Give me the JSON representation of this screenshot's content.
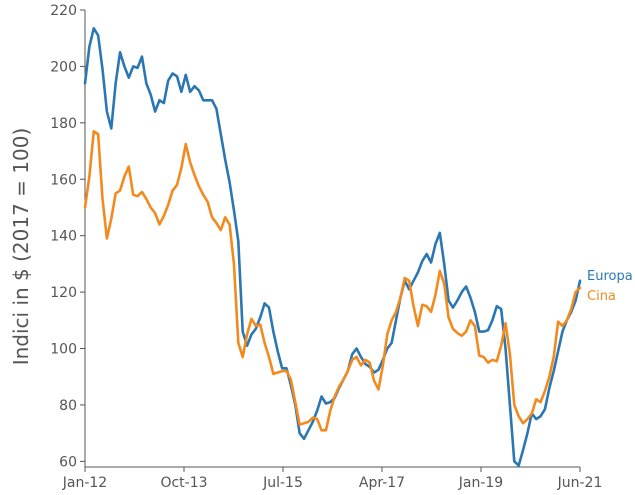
{
  "chart_data": {
    "type": "line",
    "title": "",
    "xlabel": "",
    "ylabel": "Indici in $ (2017 = 100)",
    "x_ticks": [
      "Jan-12",
      "Oct-13",
      "Jul-15",
      "Apr-17",
      "Jan-19",
      "Jun-21"
    ],
    "y_ticks": [
      60,
      80,
      100,
      120,
      140,
      160,
      180,
      200,
      220
    ],
    "ylim": [
      58,
      220
    ],
    "grid": false,
    "legend_placement": "right, at line ends",
    "series": [
      {
        "name": "Europa",
        "color": "#2a77b4",
        "points": [
          [
            "2012-01",
            194
          ],
          [
            "2012-02",
            207
          ],
          [
            "2012-03",
            213.5
          ],
          [
            "2012-04",
            211
          ],
          [
            "2012-05",
            199
          ],
          [
            "2012-06",
            184
          ],
          [
            "2012-07",
            178
          ],
          [
            "2012-08",
            194
          ],
          [
            "2012-09",
            205
          ],
          [
            "2012-10",
            200
          ],
          [
            "2012-11",
            196
          ],
          [
            "2012-12",
            200
          ],
          [
            "2013-01",
            199.5
          ],
          [
            "2013-02",
            203.5
          ],
          [
            "2013-03",
            194
          ],
          [
            "2013-04",
            190
          ],
          [
            "2013-05",
            184
          ],
          [
            "2013-06",
            188
          ],
          [
            "2013-07",
            187
          ],
          [
            "2013-08",
            195
          ],
          [
            "2013-09",
            197.5
          ],
          [
            "2013-10",
            196.5
          ],
          [
            "2013-11",
            191
          ],
          [
            "2013-12",
            197
          ],
          [
            "2014-01",
            191
          ],
          [
            "2014-02",
            193
          ],
          [
            "2014-03",
            191.5
          ],
          [
            "2014-04",
            188
          ],
          [
            "2014-05",
            188
          ],
          [
            "2014-06",
            188
          ],
          [
            "2014-07",
            185
          ],
          [
            "2014-08",
            176
          ],
          [
            "2014-09",
            167
          ],
          [
            "2014-10",
            159
          ],
          [
            "2014-11",
            149
          ],
          [
            "2014-12",
            138
          ],
          [
            "2015-01",
            106
          ],
          [
            "2015-02",
            101
          ],
          [
            "2015-03",
            105
          ],
          [
            "2015-04",
            107
          ],
          [
            "2015-05",
            111
          ],
          [
            "2015-06",
            116
          ],
          [
            "2015-07",
            114.5
          ],
          [
            "2015-08",
            106
          ],
          [
            "2015-09",
            99
          ],
          [
            "2015-10",
            93
          ],
          [
            "2015-11",
            93
          ],
          [
            "2015-12",
            87
          ],
          [
            "2016-01",
            80
          ],
          [
            "2016-02",
            70
          ],
          [
            "2016-03",
            68
          ],
          [
            "2016-04",
            71
          ],
          [
            "2016-05",
            74
          ],
          [
            "2016-06",
            78
          ],
          [
            "2016-07",
            83
          ],
          [
            "2016-08",
            80.5
          ],
          [
            "2016-09",
            81
          ],
          [
            "2016-10",
            82.5
          ],
          [
            "2016-11",
            86
          ],
          [
            "2016-12",
            89
          ],
          [
            "2017-01",
            92
          ],
          [
            "2017-02",
            98
          ],
          [
            "2017-03",
            100
          ],
          [
            "2017-04",
            97
          ],
          [
            "2017-05",
            94.5
          ],
          [
            "2017-06",
            93.5
          ],
          [
            "2017-07",
            91.5
          ],
          [
            "2017-08",
            92.5
          ],
          [
            "2017-09",
            96
          ],
          [
            "2017-10",
            100
          ],
          [
            "2017-11",
            102
          ],
          [
            "2017-12",
            110
          ],
          [
            "2018-01",
            118
          ],
          [
            "2018-02",
            124
          ],
          [
            "2018-03",
            121
          ],
          [
            "2018-04",
            124
          ],
          [
            "2018-05",
            127
          ],
          [
            "2018-06",
            131
          ],
          [
            "2018-07",
            133.5
          ],
          [
            "2018-08",
            130.5
          ],
          [
            "2018-09",
            137
          ],
          [
            "2018-10",
            141
          ],
          [
            "2018-11",
            130
          ],
          [
            "2018-12",
            117
          ],
          [
            "2019-01",
            114.5
          ],
          [
            "2019-02",
            117
          ],
          [
            "2019-03",
            120
          ],
          [
            "2019-04",
            122
          ],
          [
            "2019-05",
            118
          ],
          [
            "2019-06",
            113
          ],
          [
            "2019-07",
            106
          ],
          [
            "2019-08",
            106
          ],
          [
            "2019-09",
            106.5
          ],
          [
            "2019-10",
            110
          ],
          [
            "2019-11",
            115
          ],
          [
            "2019-12",
            114
          ],
          [
            "2020-01",
            100
          ],
          [
            "2020-02",
            80
          ],
          [
            "2020-03",
            60
          ],
          [
            "2020-04",
            58.5
          ],
          [
            "2020-05",
            64
          ],
          [
            "2020-06",
            70
          ],
          [
            "2020-07",
            77
          ],
          [
            "2020-08",
            75
          ],
          [
            "2020-09",
            76
          ],
          [
            "2020-10",
            78.5
          ],
          [
            "2020-11",
            86
          ],
          [
            "2020-12",
            92
          ],
          [
            "2021-01",
            99
          ],
          [
            "2021-02",
            106
          ],
          [
            "2021-03",
            110
          ],
          [
            "2021-04",
            113
          ],
          [
            "2021-05",
            117
          ],
          [
            "2021-06",
            124
          ]
        ]
      },
      {
        "name": "Cina",
        "color": "#f28a1e",
        "points": [
          [
            "2012-01",
            150
          ],
          [
            "2012-02",
            161
          ],
          [
            "2012-03",
            177
          ],
          [
            "2012-04",
            176
          ],
          [
            "2012-05",
            153
          ],
          [
            "2012-06",
            139
          ],
          [
            "2012-07",
            146
          ],
          [
            "2012-08",
            155
          ],
          [
            "2012-09",
            156
          ],
          [
            "2012-10",
            161
          ],
          [
            "2012-11",
            164.5
          ],
          [
            "2012-12",
            154.5
          ],
          [
            "2013-01",
            154
          ],
          [
            "2013-02",
            155.5
          ],
          [
            "2013-03",
            153
          ],
          [
            "2013-04",
            150
          ],
          [
            "2013-05",
            148
          ],
          [
            "2013-06",
            144
          ],
          [
            "2013-07",
            147
          ],
          [
            "2013-08",
            151
          ],
          [
            "2013-09",
            156
          ],
          [
            "2013-10",
            158
          ],
          [
            "2013-11",
            164
          ],
          [
            "2013-12",
            172.5
          ],
          [
            "2014-01",
            166
          ],
          [
            "2014-02",
            161.5
          ],
          [
            "2014-03",
            157.5
          ],
          [
            "2014-04",
            154.5
          ],
          [
            "2014-05",
            152
          ],
          [
            "2014-06",
            146.5
          ],
          [
            "2014-07",
            144.5
          ],
          [
            "2014-08",
            142
          ],
          [
            "2014-09",
            146.5
          ],
          [
            "2014-10",
            144
          ],
          [
            "2014-11",
            130
          ],
          [
            "2014-12",
            102
          ],
          [
            "2015-01",
            97
          ],
          [
            "2015-02",
            105
          ],
          [
            "2015-03",
            110.5
          ],
          [
            "2015-04",
            108
          ],
          [
            "2015-05",
            108.5
          ],
          [
            "2015-06",
            102
          ],
          [
            "2015-07",
            97
          ],
          [
            "2015-08",
            91
          ],
          [
            "2015-09",
            91.5
          ],
          [
            "2015-10",
            92
          ],
          [
            "2015-11",
            92
          ],
          [
            "2015-12",
            89
          ],
          [
            "2016-01",
            81
          ],
          [
            "2016-02",
            73
          ],
          [
            "2016-03",
            73.5
          ],
          [
            "2016-04",
            74
          ],
          [
            "2016-05",
            75.5
          ],
          [
            "2016-06",
            75
          ],
          [
            "2016-07",
            71
          ],
          [
            "2016-08",
            71
          ],
          [
            "2016-09",
            78
          ],
          [
            "2016-10",
            83
          ],
          [
            "2016-11",
            86.5
          ],
          [
            "2016-12",
            89
          ],
          [
            "2017-01",
            92
          ],
          [
            "2017-02",
            96
          ],
          [
            "2017-03",
            97
          ],
          [
            "2017-04",
            94
          ],
          [
            "2017-05",
            96
          ],
          [
            "2017-06",
            95
          ],
          [
            "2017-07",
            88.5
          ],
          [
            "2017-08",
            85.5
          ],
          [
            "2017-09",
            94
          ],
          [
            "2017-10",
            105
          ],
          [
            "2017-11",
            110
          ],
          [
            "2017-12",
            113
          ],
          [
            "2018-01",
            118
          ],
          [
            "2018-02",
            125
          ],
          [
            "2018-03",
            124
          ],
          [
            "2018-04",
            115
          ],
          [
            "2018-05",
            108
          ],
          [
            "2018-06",
            115.5
          ],
          [
            "2018-07",
            115
          ],
          [
            "2018-08",
            113
          ],
          [
            "2018-09",
            119
          ],
          [
            "2018-10",
            127.5
          ],
          [
            "2018-11",
            123
          ],
          [
            "2018-12",
            111
          ],
          [
            "2019-01",
            107
          ],
          [
            "2019-02",
            105.5
          ],
          [
            "2019-03",
            104.5
          ],
          [
            "2019-04",
            106
          ],
          [
            "2019-05",
            110
          ],
          [
            "2019-06",
            108
          ],
          [
            "2019-07",
            97.5
          ],
          [
            "2019-08",
            97
          ],
          [
            "2019-09",
            95
          ],
          [
            "2019-10",
            96
          ],
          [
            "2019-11",
            95.5
          ],
          [
            "2019-12",
            101
          ],
          [
            "2020-01",
            109
          ],
          [
            "2020-02",
            98
          ],
          [
            "2020-03",
            80
          ],
          [
            "2020-04",
            76
          ],
          [
            "2020-05",
            73.5
          ],
          [
            "2020-06",
            75
          ],
          [
            "2020-07",
            77
          ],
          [
            "2020-08",
            82
          ],
          [
            "2020-09",
            81
          ],
          [
            "2020-10",
            85
          ],
          [
            "2020-11",
            90
          ],
          [
            "2020-12",
            97
          ],
          [
            "2021-01",
            109.5
          ],
          [
            "2021-02",
            108
          ],
          [
            "2021-03",
            110
          ],
          [
            "2021-04",
            114
          ],
          [
            "2021-05",
            120
          ],
          [
            "2021-06",
            121.5
          ]
        ]
      }
    ]
  }
}
